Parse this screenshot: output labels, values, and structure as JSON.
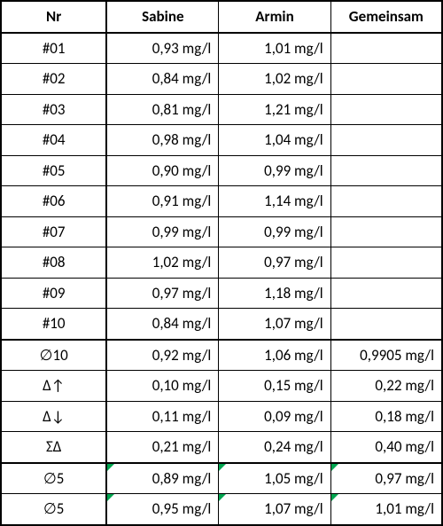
{
  "columns": [
    "Nr",
    "Sabine",
    "Armin",
    "Gemeinsam"
  ],
  "rows": [
    {
      "nr": "#01",
      "sabine": "0,93 mg/l",
      "armin": "1,01 mg/l",
      "gem": "",
      "thickTop": false,
      "markers": false
    },
    {
      "nr": "#02",
      "sabine": "0,84 mg/l",
      "armin": "1,02 mg/l",
      "gem": "",
      "thickTop": false,
      "markers": false
    },
    {
      "nr": "#03",
      "sabine": "0,81 mg/l",
      "armin": "1,21 mg/l",
      "gem": "",
      "thickTop": false,
      "markers": false
    },
    {
      "nr": "#04",
      "sabine": "0,98 mg/l",
      "armin": "1,04 mg/l",
      "gem": "",
      "thickTop": false,
      "markers": false
    },
    {
      "nr": "#05",
      "sabine": "0,90 mg/l",
      "armin": "0,99 mg/l",
      "gem": "",
      "thickTop": false,
      "markers": false
    },
    {
      "nr": "#06",
      "sabine": "0,91 mg/l",
      "armin": "1,14 mg/l",
      "gem": "",
      "thickTop": false,
      "markers": false
    },
    {
      "nr": "#07",
      "sabine": "0,99 mg/l",
      "armin": "0,99 mg/l",
      "gem": "",
      "thickTop": false,
      "markers": false
    },
    {
      "nr": "#08",
      "sabine": "1,02 mg/l",
      "armin": "0,97 mg/l",
      "gem": "",
      "thickTop": false,
      "markers": false
    },
    {
      "nr": "#09",
      "sabine": "0,97 mg/l",
      "armin": "1,18 mg/l",
      "gem": "",
      "thickTop": false,
      "markers": false
    },
    {
      "nr": "#10",
      "sabine": "0,84 mg/l",
      "armin": "1,07 mg/l",
      "gem": "",
      "thickTop": false,
      "markers": false
    },
    {
      "nr": "∅10",
      "sabine": "0,92 mg/l",
      "armin": "1,06 mg/l",
      "gem": "0,9905 mg/l",
      "thickTop": true,
      "markers": false
    },
    {
      "nr": "Δ↑",
      "sabine": "0,10 mg/l",
      "armin": "0,15 mg/l",
      "gem": "0,22 mg/l",
      "thickTop": false,
      "markers": false
    },
    {
      "nr": "Δ↓",
      "sabine": "0,11 mg/l",
      "armin": "0,09 mg/l",
      "gem": "0,18 mg/l",
      "thickTop": false,
      "markers": false
    },
    {
      "nr": "ΣΔ",
      "sabine": "0,21 mg/l",
      "armin": "0,24 mg/l",
      "gem": "0,40 mg/l",
      "thickTop": false,
      "markers": false
    },
    {
      "nr": "∅5",
      "sabine": "0,89 mg/l",
      "armin": "1,05 mg/l",
      "gem": "0,97 mg/l",
      "thickTop": true,
      "markers": true
    },
    {
      "nr": "∅5",
      "sabine": "0,95 mg/l",
      "armin": "1,07 mg/l",
      "gem": "1,01 mg/l",
      "thickTop": false,
      "markers": true
    }
  ],
  "style": {
    "border_color": "#000000",
    "marker_color": "#00a550",
    "background": "#ffffff",
    "font_size": 17
  }
}
